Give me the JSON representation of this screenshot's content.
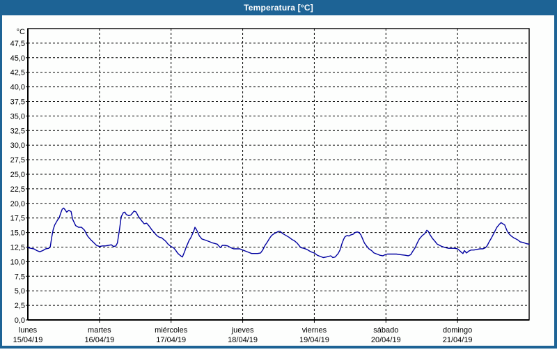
{
  "window": {
    "title": "Temperatura [°C]",
    "frame_color": "#1d6395",
    "title_text_color": "#ffffff",
    "background_color": "#fdfefd"
  },
  "chart_data": {
    "type": "line",
    "title": "Temperatura [°C]",
    "ylabel": "°C",
    "xlabel": "",
    "ylim": [
      0,
      50
    ],
    "xlim_hours": [
      0,
      168
    ],
    "y_tick_step": 2.5,
    "y_tick_labels": [
      "0,0",
      "2,5",
      "5,0",
      "7,5",
      "10,0",
      "12,5",
      "15,0",
      "17,5",
      "20,0",
      "22,5",
      "25,0",
      "27,5",
      "30,0",
      "32,5",
      "35,0",
      "37,5",
      "40,0",
      "42,5",
      "45,0",
      "47,5"
    ],
    "grid": "dashed",
    "legend_position": "none",
    "axis_color": "#000000",
    "text_color": "#000000",
    "days": [
      {
        "name": "lunes",
        "date": "15/04/19"
      },
      {
        "name": "martes",
        "date": "16/04/19"
      },
      {
        "name": "miércoles",
        "date": "17/04/19"
      },
      {
        "name": "jueves",
        "date": "18/04/19"
      },
      {
        "name": "viernes",
        "date": "19/04/19"
      },
      {
        "name": "sábado",
        "date": "20/04/19"
      },
      {
        "name": "domingo",
        "date": "21/04/19"
      }
    ],
    "series": [
      {
        "name": "Temperatura",
        "color": "#0000a0",
        "points": [
          [
            0,
            12.4
          ],
          [
            1,
            12.3
          ],
          [
            2,
            12.2
          ],
          [
            3,
            11.9
          ],
          [
            4,
            11.7
          ],
          [
            5,
            11.9
          ],
          [
            6,
            12.2
          ],
          [
            7,
            12.3
          ],
          [
            7.5,
            12.5
          ],
          [
            8,
            14.2
          ],
          [
            8.5,
            15.5
          ],
          [
            9,
            16.3
          ],
          [
            10,
            17.2
          ],
          [
            10.5,
            17.5
          ],
          [
            11,
            18.3
          ],
          [
            11.5,
            19.0
          ],
          [
            12,
            19.2
          ],
          [
            12.5,
            18.9
          ],
          [
            13,
            18.5
          ],
          [
            13.7,
            18.8
          ],
          [
            14.5,
            18.6
          ],
          [
            15,
            17.3
          ],
          [
            16,
            16.2
          ],
          [
            17,
            15.9
          ],
          [
            18,
            15.9
          ],
          [
            19,
            15.4
          ],
          [
            20,
            14.4
          ],
          [
            21,
            13.8
          ],
          [
            22,
            13.3
          ],
          [
            23,
            12.8
          ],
          [
            24,
            12.6
          ],
          [
            25,
            12.7
          ],
          [
            26,
            12.7
          ],
          [
            27,
            12.8
          ],
          [
            28,
            12.9
          ],
          [
            28.7,
            12.6
          ],
          [
            29.5,
            12.7
          ],
          [
            30,
            13.2
          ],
          [
            30.7,
            15.5
          ],
          [
            31.3,
            17.7
          ],
          [
            32,
            18.4
          ],
          [
            32.5,
            18.5
          ],
          [
            33,
            18.1
          ],
          [
            33.8,
            17.9
          ],
          [
            34.5,
            18.0
          ],
          [
            35,
            18.3
          ],
          [
            35.6,
            18.7
          ],
          [
            36.3,
            18.5
          ],
          [
            37,
            17.8
          ],
          [
            38,
            17.1
          ],
          [
            39,
            16.5
          ],
          [
            39.8,
            16.6
          ],
          [
            40.5,
            16.2
          ],
          [
            41.5,
            15.5
          ],
          [
            42.5,
            14.9
          ],
          [
            43.2,
            14.5
          ],
          [
            44,
            14.2
          ],
          [
            44.8,
            14.1
          ],
          [
            45.5,
            13.8
          ],
          [
            46.2,
            13.5
          ],
          [
            47,
            13.0
          ],
          [
            48,
            12.6
          ],
          [
            48.8,
            12.4
          ],
          [
            49.5,
            12.0
          ],
          [
            50,
            11.6
          ],
          [
            50.5,
            11.3
          ],
          [
            51,
            11.1
          ],
          [
            51.5,
            10.9
          ],
          [
            51.8,
            10.8
          ],
          [
            52.2,
            11.3
          ],
          [
            52.6,
            11.8
          ],
          [
            53,
            12.4
          ],
          [
            53.5,
            13.0
          ],
          [
            54,
            13.6
          ],
          [
            54.6,
            14.1
          ],
          [
            55.2,
            14.8
          ],
          [
            55.7,
            15.4
          ],
          [
            56,
            15.9
          ],
          [
            56.4,
            15.6
          ],
          [
            56.8,
            15.2
          ],
          [
            57.5,
            14.4
          ],
          [
            58.3,
            13.9
          ],
          [
            59.5,
            13.7
          ],
          [
            60.5,
            13.5
          ],
          [
            62,
            13.2
          ],
          [
            63.5,
            13.0
          ],
          [
            64.5,
            12.4
          ],
          [
            65.2,
            12.8
          ],
          [
            66,
            12.8
          ],
          [
            67,
            12.7
          ],
          [
            68,
            12.4
          ],
          [
            69,
            12.2
          ],
          [
            70,
            12.2
          ],
          [
            71,
            12.2
          ],
          [
            72,
            12.0
          ],
          [
            73,
            11.8
          ],
          [
            74,
            11.6
          ],
          [
            75,
            11.4
          ],
          [
            76,
            11.4
          ],
          [
            77,
            11.4
          ],
          [
            78,
            11.5
          ],
          [
            78.7,
            12.0
          ],
          [
            79.5,
            12.8
          ],
          [
            80.3,
            13.4
          ],
          [
            81,
            14.0
          ],
          [
            81.7,
            14.5
          ],
          [
            82.5,
            14.8
          ],
          [
            83.3,
            15.0
          ],
          [
            84,
            15.2
          ],
          [
            84.5,
            15.2
          ],
          [
            85.5,
            14.8
          ],
          [
            86.5,
            14.5
          ],
          [
            87.5,
            14.2
          ],
          [
            88.5,
            13.8
          ],
          [
            89.3,
            13.6
          ],
          [
            90.2,
            13.2
          ],
          [
            91,
            12.7
          ],
          [
            91.5,
            12.4
          ],
          [
            92.5,
            12.3
          ],
          [
            93.5,
            12.1
          ],
          [
            94.5,
            11.8
          ],
          [
            95.3,
            11.6
          ],
          [
            96,
            11.5
          ],
          [
            97,
            11.1
          ],
          [
            98,
            10.9
          ],
          [
            99,
            10.7
          ],
          [
            100,
            10.8
          ],
          [
            100.7,
            10.9
          ],
          [
            101.5,
            11.0
          ],
          [
            102.2,
            10.7
          ],
          [
            103,
            10.8
          ],
          [
            104,
            11.4
          ],
          [
            104.6,
            12.0
          ],
          [
            105.2,
            13.0
          ],
          [
            105.8,
            13.8
          ],
          [
            106.3,
            14.3
          ],
          [
            107,
            14.5
          ],
          [
            107.6,
            14.4
          ],
          [
            108.3,
            14.6
          ],
          [
            109,
            14.7
          ],
          [
            109.7,
            15.0
          ],
          [
            110.4,
            15.1
          ],
          [
            111,
            15.0
          ],
          [
            111.6,
            14.6
          ],
          [
            112.2,
            13.9
          ],
          [
            112.8,
            13.2
          ],
          [
            113.5,
            12.7
          ],
          [
            114.3,
            12.2
          ],
          [
            115.2,
            11.9
          ],
          [
            116,
            11.5
          ],
          [
            117,
            11.3
          ],
          [
            118,
            11.1
          ],
          [
            119,
            11.0
          ],
          [
            119.7,
            11.2
          ],
          [
            120.5,
            11.3
          ],
          [
            122,
            11.3
          ],
          [
            123.5,
            11.3
          ],
          [
            125,
            11.2
          ],
          [
            126.5,
            11.1
          ],
          [
            127.5,
            11.0
          ],
          [
            128.3,
            11.2
          ],
          [
            129,
            11.8
          ],
          [
            129.8,
            12.4
          ],
          [
            130.5,
            13.2
          ],
          [
            131.2,
            13.9
          ],
          [
            132.2,
            14.5
          ],
          [
            133,
            14.8
          ],
          [
            133.7,
            15.4
          ],
          [
            134.2,
            15.2
          ],
          [
            134.8,
            14.6
          ],
          [
            135.6,
            14.0
          ],
          [
            136.4,
            13.5
          ],
          [
            137.2,
            13.0
          ],
          [
            138,
            12.8
          ],
          [
            138.8,
            12.6
          ],
          [
            140,
            12.4
          ],
          [
            141,
            12.3
          ],
          [
            142,
            12.3
          ],
          [
            143,
            12.3
          ],
          [
            144,
            12.2
          ],
          [
            144.7,
            11.9
          ],
          [
            145.3,
            11.6
          ],
          [
            145.8,
            11.4
          ],
          [
            146.3,
            11.9
          ],
          [
            147,
            11.5
          ],
          [
            147.7,
            11.8
          ],
          [
            148.5,
            12.0
          ],
          [
            149.5,
            12.0
          ],
          [
            150.5,
            12.1
          ],
          [
            151.5,
            12.2
          ],
          [
            152.5,
            12.2
          ],
          [
            153.4,
            12.4
          ],
          [
            154,
            12.8
          ],
          [
            154.7,
            13.5
          ],
          [
            155.4,
            14.1
          ],
          [
            156,
            14.7
          ],
          [
            156.6,
            15.3
          ],
          [
            157.2,
            15.9
          ],
          [
            158,
            16.4
          ],
          [
            158.6,
            16.7
          ],
          [
            159.2,
            16.5
          ],
          [
            159.8,
            16.3
          ],
          [
            160.5,
            15.4
          ],
          [
            161.2,
            14.8
          ],
          [
            162,
            14.4
          ],
          [
            162.8,
            14.1
          ],
          [
            163.6,
            13.9
          ],
          [
            164.3,
            13.7
          ],
          [
            165,
            13.4
          ],
          [
            166,
            13.3
          ],
          [
            167,
            13.1
          ],
          [
            168,
            13.0
          ]
        ]
      }
    ]
  }
}
